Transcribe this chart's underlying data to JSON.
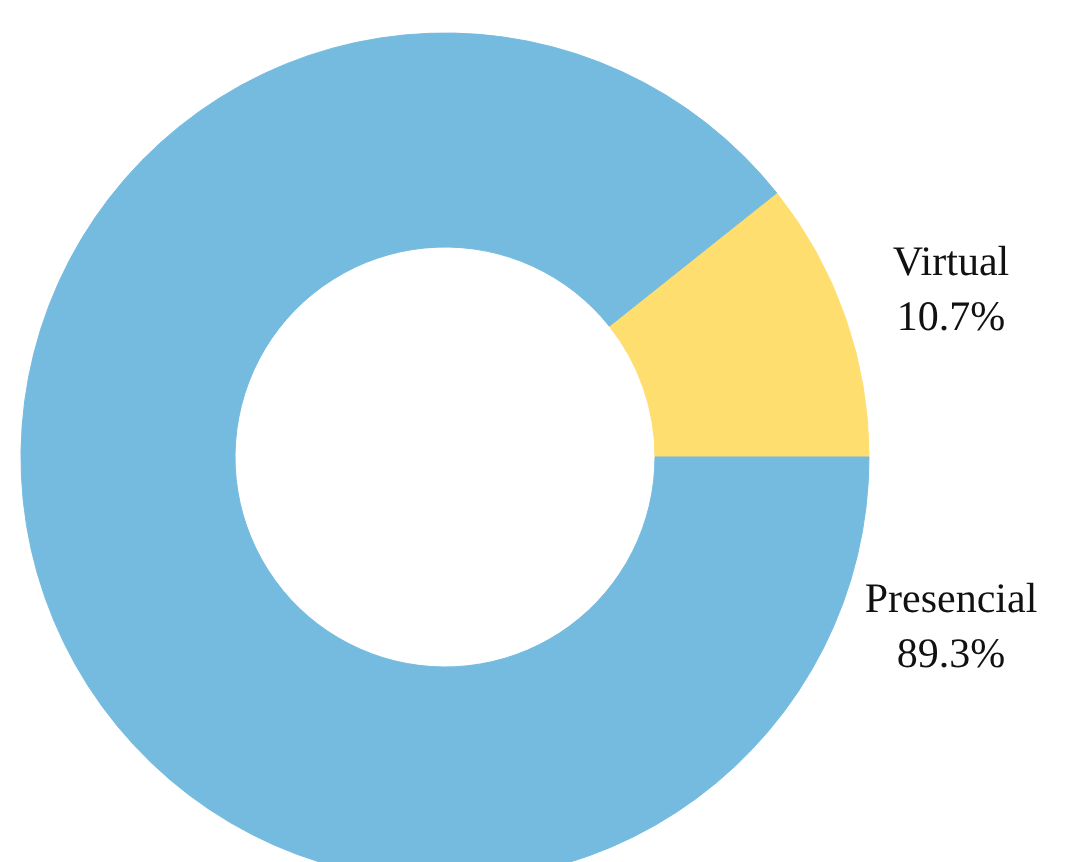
{
  "chart_data": {
    "type": "donut",
    "categories": [
      "Virtual",
      "Presencial"
    ],
    "values": [
      10.7,
      89.3
    ],
    "colors": [
      "#ffde70",
      "#74bbdf"
    ],
    "value_labels": [
      "10.7%",
      "89.3%"
    ]
  }
}
